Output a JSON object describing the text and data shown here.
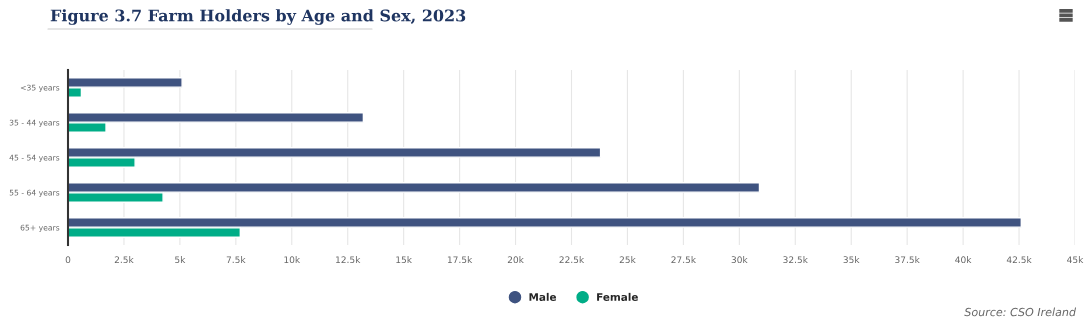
{
  "chart_data": {
    "type": "bar",
    "orientation": "horizontal",
    "title": "Figure 3.7 Farm Holders by Age and Sex, 2023",
    "categories": [
      "<35 years",
      "35 - 44 years",
      "45 - 54 years",
      "55 - 64 years",
      "65+ years"
    ],
    "series": [
      {
        "name": "Male",
        "color": "#3f5380",
        "values": [
          5100,
          13200,
          23800,
          30900,
          42600
        ]
      },
      {
        "name": "Female",
        "color": "#00ad87",
        "values": [
          600,
          1700,
          3000,
          4250,
          7700
        ]
      }
    ],
    "xlim": [
      0,
      45000
    ],
    "xticks": [
      0,
      {
        "value": 2500,
        "label": "2.5k"
      },
      {
        "value": 5000,
        "label": "5k"
      },
      {
        "value": 7500,
        "label": "7.5k"
      },
      {
        "value": 10000,
        "label": "10k"
      },
      {
        "value": 12500,
        "label": "12.5k"
      },
      {
        "value": 15000,
        "label": "15k"
      },
      {
        "value": 17500,
        "label": "17.5k"
      },
      {
        "value": 20000,
        "label": "20k"
      },
      {
        "value": 22500,
        "label": "22.5k"
      },
      {
        "value": 25000,
        "label": "25k"
      },
      {
        "value": 27500,
        "label": "27.5k"
      },
      {
        "value": 30000,
        "label": "30k"
      },
      {
        "value": 32500,
        "label": "32.5k"
      },
      {
        "value": 35000,
        "label": "35k"
      },
      {
        "value": 37500,
        "label": "37.5k"
      },
      {
        "value": 40000,
        "label": "40k"
      },
      {
        "value": 42500,
        "label": "42.5k"
      },
      {
        "value": 45000,
        "label": "45k"
      }
    ],
    "grid": "x",
    "legend": "bottom",
    "marker": "circle",
    "annotations": [
      "Source: CSO Ireland"
    ]
  }
}
